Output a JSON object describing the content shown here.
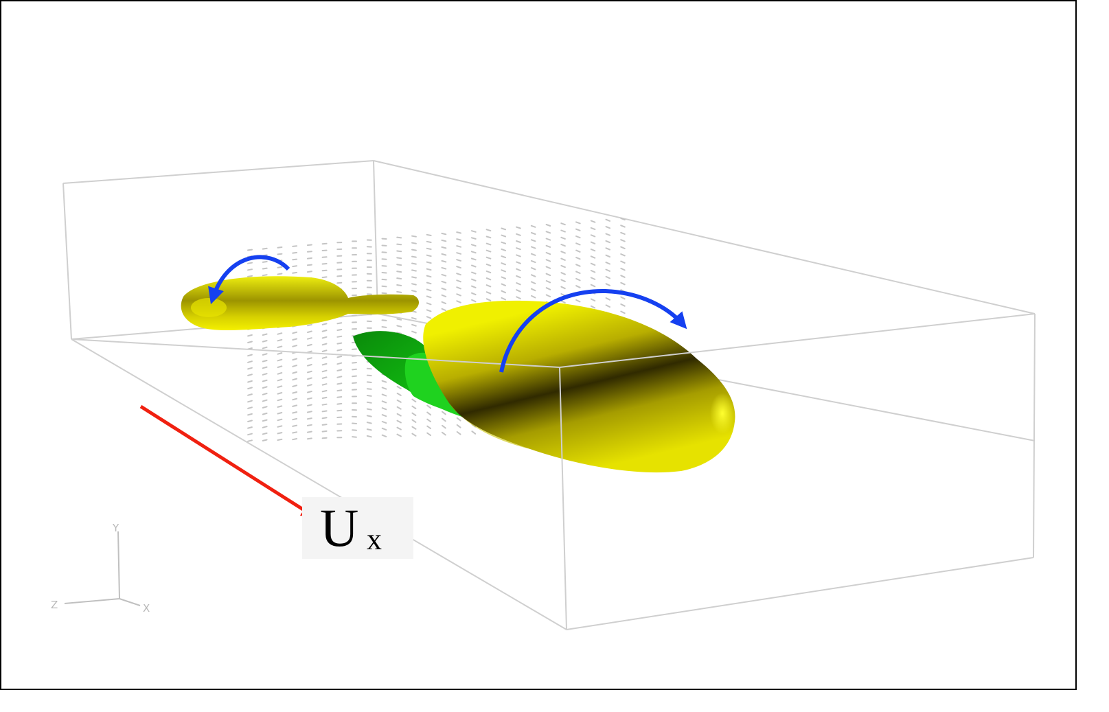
{
  "annotation": {
    "main": "U",
    "subscript": "x"
  },
  "axes_triad": {
    "y": "Y",
    "z": "Z",
    "x": "X"
  },
  "colors": {
    "box_edges": "#c8c8c8",
    "vectors": "#c4c4c4",
    "isosurface_yellow": "#f2f200",
    "isosurface_green": "#18c018",
    "rotation_arrows": "#1540f0",
    "flow_arrow": "#f02010"
  },
  "icons": [
    "rotation-arrow-left-icon",
    "rotation-arrow-right-icon",
    "flow-direction-arrow-icon"
  ]
}
